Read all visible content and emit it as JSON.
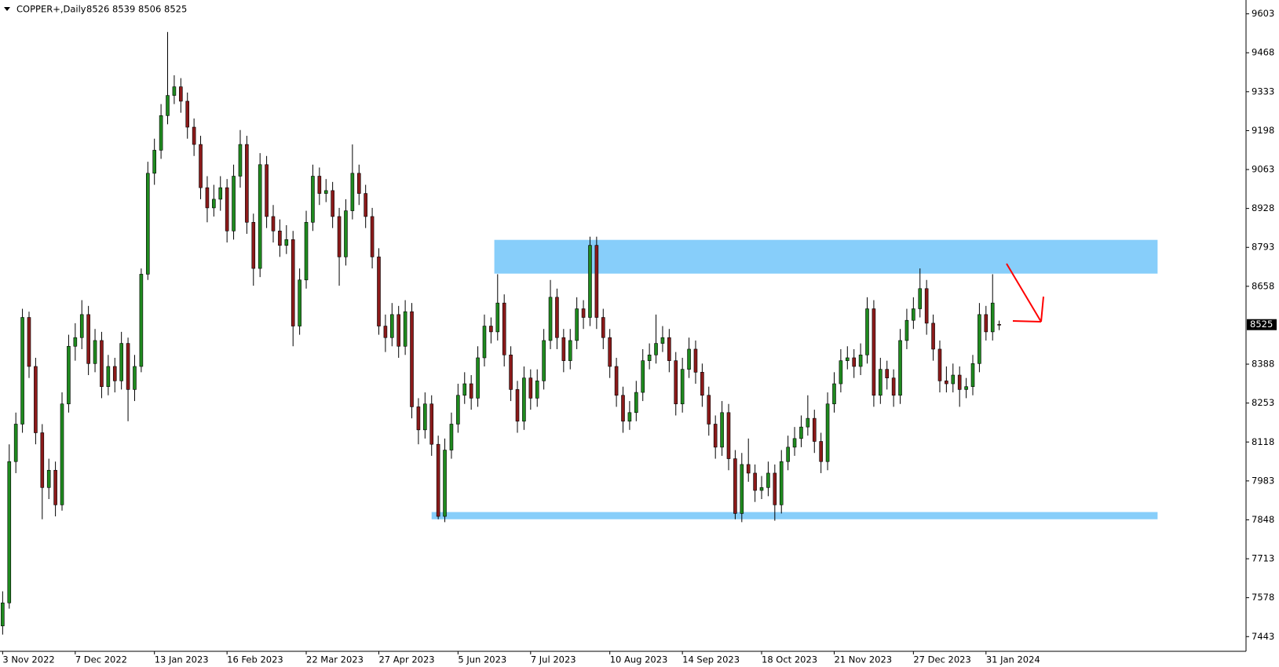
{
  "chart_data": {
    "type": "candlestick",
    "title": "COPPER+,Daily",
    "ylim": [
      7392,
      9651
    ],
    "yticks": [
      9603,
      9468,
      9333,
      9198,
      9063,
      8928,
      8793,
      8658,
      8388,
      8253,
      8118,
      7983,
      7848,
      7713,
      7578,
      7443
    ],
    "xlim": [
      -0.4,
      188.4
    ],
    "xticks": [
      {
        "value": 0,
        "label": "3 Nov 2022"
      },
      {
        "value": 11,
        "label": "7 Dec 2022"
      },
      {
        "value": 23,
        "label": "13 Jan 2023"
      },
      {
        "value": 34,
        "label": "16 Feb 2023"
      },
      {
        "value": 46,
        "label": "22 Mar 2023"
      },
      {
        "value": 57,
        "label": "27 Apr 2023"
      },
      {
        "value": 69,
        "label": "5 Jun 2023"
      },
      {
        "value": 80,
        "label": "7 Jul 2023"
      },
      {
        "value": 92,
        "label": "10 Aug 2023"
      },
      {
        "value": 103,
        "label": "14 Sep 2023"
      },
      {
        "value": 115,
        "label": "18 Oct 2023"
      },
      {
        "value": 126,
        "label": "21 Nov 2023"
      },
      {
        "value": 138,
        "label": "27 Dec 2023"
      },
      {
        "value": 149,
        "label": "31 Jan 2024"
      }
    ],
    "up_color": "#1f8a1f",
    "down_color": "#8b1a1a",
    "wick_color": "#000000",
    "grid": false,
    "zones": [
      {
        "x": [
          74.5,
          175
        ],
        "y": [
          8702,
          8819
        ],
        "color": "#87cefa"
      },
      {
        "x": [
          65,
          175
        ],
        "y": [
          7850,
          7875
        ],
        "color": "#87cefa"
      }
    ],
    "ohlc": [
      [
        7480,
        7600,
        7450,
        7560
      ],
      [
        7560,
        8110,
        7540,
        8050
      ],
      [
        8050,
        8220,
        8010,
        8180
      ],
      [
        8180,
        8580,
        8150,
        8550
      ],
      [
        8550,
        8570,
        8340,
        8380
      ],
      [
        8380,
        8410,
        8110,
        8150
      ],
      [
        8150,
        8180,
        7850,
        7960
      ],
      [
        7960,
        8060,
        7920,
        8020
      ],
      [
        8020,
        8050,
        7860,
        7900
      ],
      [
        7900,
        8290,
        7880,
        8250
      ],
      [
        8250,
        8490,
        8220,
        8450
      ],
      [
        8450,
        8530,
        8400,
        8480
      ],
      [
        8480,
        8610,
        8440,
        8560
      ],
      [
        8560,
        8590,
        8350,
        8390
      ],
      [
        8390,
        8510,
        8360,
        8470
      ],
      [
        8470,
        8500,
        8270,
        8310
      ],
      [
        8310,
        8420,
        8280,
        8380
      ],
      [
        8380,
        8410,
        8290,
        8330
      ],
      [
        8330,
        8500,
        8300,
        8460
      ],
      [
        8460,
        8480,
        8190,
        8300
      ],
      [
        8300,
        8420,
        8260,
        8380
      ],
      [
        8380,
        8720,
        8360,
        8700
      ],
      [
        8700,
        9090,
        8680,
        9050
      ],
      [
        9050,
        9170,
        9010,
        9130
      ],
      [
        9130,
        9290,
        9100,
        9250
      ],
      [
        9250,
        9540,
        9220,
        9320
      ],
      [
        9320,
        9390,
        9290,
        9350
      ],
      [
        9350,
        9380,
        9260,
        9300
      ],
      [
        9300,
        9330,
        9170,
        9210
      ],
      [
        9210,
        9240,
        9110,
        9150
      ],
      [
        9150,
        9180,
        8960,
        9000
      ],
      [
        9000,
        9040,
        8880,
        8930
      ],
      [
        8930,
        9010,
        8900,
        8960
      ],
      [
        8960,
        9040,
        8920,
        9000
      ],
      [
        9000,
        9030,
        8810,
        8850
      ],
      [
        8850,
        9080,
        8820,
        9040
      ],
      [
        9040,
        9200,
        9000,
        9150
      ],
      [
        9150,
        9180,
        8840,
        8880
      ],
      [
        8880,
        8910,
        8660,
        8720
      ],
      [
        8720,
        9120,
        8690,
        9080
      ],
      [
        9080,
        9110,
        8860,
        8900
      ],
      [
        8900,
        8940,
        8810,
        8850
      ],
      [
        8850,
        8890,
        8760,
        8800
      ],
      [
        8800,
        8870,
        8770,
        8820
      ],
      [
        8820,
        8850,
        8450,
        8520
      ],
      [
        8520,
        8720,
        8490,
        8680
      ],
      [
        8680,
        8920,
        8650,
        8880
      ],
      [
        8880,
        9080,
        8850,
        9040
      ],
      [
        9040,
        9070,
        8940,
        8980
      ],
      [
        8980,
        9030,
        8950,
        8990
      ],
      [
        8990,
        9020,
        8860,
        8900
      ],
      [
        8900,
        8930,
        8660,
        8760
      ],
      [
        8760,
        8960,
        8730,
        8920
      ],
      [
        8920,
        9150,
        8890,
        9050
      ],
      [
        9050,
        9080,
        8940,
        8980
      ],
      [
        8980,
        9010,
        8860,
        8900
      ],
      [
        8900,
        8930,
        8720,
        8760
      ],
      [
        8760,
        8790,
        8490,
        8520
      ],
      [
        8520,
        8560,
        8430,
        8480
      ],
      [
        8480,
        8600,
        8450,
        8560
      ],
      [
        8560,
        8590,
        8410,
        8450
      ],
      [
        8450,
        8610,
        8420,
        8570
      ],
      [
        8570,
        8600,
        8200,
        8240
      ],
      [
        8240,
        8270,
        8110,
        8160
      ],
      [
        8160,
        8290,
        8130,
        8250
      ],
      [
        8250,
        8280,
        8070,
        8110
      ],
      [
        8110,
        8140,
        7850,
        7860
      ],
      [
        7860,
        8130,
        7840,
        8090
      ],
      [
        8090,
        8220,
        8060,
        8180
      ],
      [
        8180,
        8320,
        8150,
        8280
      ],
      [
        8280,
        8360,
        8250,
        8320
      ],
      [
        8320,
        8350,
        8230,
        8270
      ],
      [
        8270,
        8450,
        8240,
        8410
      ],
      [
        8410,
        8560,
        8380,
        8520
      ],
      [
        8520,
        8550,
        8460,
        8500
      ],
      [
        8500,
        8700,
        8470,
        8600
      ],
      [
        8600,
        8630,
        8380,
        8420
      ],
      [
        8420,
        8450,
        8260,
        8300
      ],
      [
        8300,
        8330,
        8150,
        8190
      ],
      [
        8190,
        8380,
        8160,
        8340
      ],
      [
        8340,
        8370,
        8230,
        8270
      ],
      [
        8270,
        8370,
        8240,
        8330
      ],
      [
        8330,
        8510,
        8300,
        8470
      ],
      [
        8470,
        8680,
        8440,
        8620
      ],
      [
        8620,
        8650,
        8440,
        8480
      ],
      [
        8480,
        8510,
        8360,
        8400
      ],
      [
        8400,
        8510,
        8370,
        8470
      ],
      [
        8470,
        8620,
        8440,
        8580
      ],
      [
        8580,
        8610,
        8510,
        8550
      ],
      [
        8550,
        8830,
        8520,
        8800
      ],
      [
        8800,
        8830,
        8510,
        8550
      ],
      [
        8550,
        8580,
        8440,
        8480
      ],
      [
        8480,
        8510,
        8340,
        8380
      ],
      [
        8380,
        8410,
        8240,
        8280
      ],
      [
        8280,
        8310,
        8150,
        8190
      ],
      [
        8190,
        8260,
        8160,
        8220
      ],
      [
        8220,
        8330,
        8190,
        8290
      ],
      [
        8290,
        8440,
        8260,
        8400
      ],
      [
        8400,
        8460,
        8370,
        8420
      ],
      [
        8420,
        8560,
        8390,
        8460
      ],
      [
        8460,
        8520,
        8430,
        8480
      ],
      [
        8480,
        8510,
        8360,
        8400
      ],
      [
        8400,
        8430,
        8210,
        8250
      ],
      [
        8250,
        8410,
        8220,
        8370
      ],
      [
        8370,
        8480,
        8340,
        8440
      ],
      [
        8440,
        8470,
        8320,
        8360
      ],
      [
        8360,
        8390,
        8240,
        8280
      ],
      [
        8280,
        8310,
        8140,
        8180
      ],
      [
        8180,
        8210,
        8060,
        8100
      ],
      [
        8100,
        8260,
        8070,
        8220
      ],
      [
        8220,
        8250,
        8020,
        8060
      ],
      [
        8060,
        8090,
        7850,
        7870
      ],
      [
        7870,
        8080,
        7840,
        8040
      ],
      [
        8040,
        8130,
        7980,
        8010
      ],
      [
        8010,
        8040,
        7910,
        7950
      ],
      [
        7950,
        8000,
        7920,
        7960
      ],
      [
        7960,
        8050,
        7930,
        8010
      ],
      [
        8010,
        8040,
        7845,
        7900
      ],
      [
        7900,
        8090,
        7870,
        8050
      ],
      [
        8050,
        8140,
        8020,
        8100
      ],
      [
        8100,
        8170,
        8070,
        8130
      ],
      [
        8130,
        8210,
        8100,
        8170
      ],
      [
        8170,
        8280,
        8140,
        8200
      ],
      [
        8200,
        8230,
        8080,
        8120
      ],
      [
        8120,
        8150,
        8010,
        8050
      ],
      [
        8050,
        8290,
        8020,
        8250
      ],
      [
        8250,
        8360,
        8220,
        8320
      ],
      [
        8320,
        8440,
        8290,
        8400
      ],
      [
        8400,
        8450,
        8370,
        8410
      ],
      [
        8410,
        8440,
        8340,
        8380
      ],
      [
        8380,
        8460,
        8350,
        8420
      ],
      [
        8420,
        8620,
        8390,
        8580
      ],
      [
        8580,
        8610,
        8240,
        8280
      ],
      [
        8280,
        8410,
        8250,
        8370
      ],
      [
        8370,
        8400,
        8300,
        8340
      ],
      [
        8340,
        8370,
        8240,
        8280
      ],
      [
        8280,
        8510,
        8250,
        8470
      ],
      [
        8470,
        8580,
        8440,
        8540
      ],
      [
        8540,
        8620,
        8510,
        8580
      ],
      [
        8580,
        8720,
        8550,
        8650
      ],
      [
        8650,
        8680,
        8490,
        8530
      ],
      [
        8530,
        8560,
        8400,
        8440
      ],
      [
        8440,
        8470,
        8290,
        8330
      ],
      [
        8330,
        8380,
        8290,
        8320
      ],
      [
        8320,
        8390,
        8290,
        8350
      ],
      [
        8350,
        8380,
        8240,
        8300
      ],
      [
        8300,
        8340,
        8270,
        8310
      ],
      [
        8310,
        8420,
        8280,
        8390
      ],
      [
        8390,
        8600,
        8360,
        8560
      ],
      [
        8560,
        8590,
        8470,
        8500
      ],
      [
        8500,
        8700,
        8470,
        8600
      ],
      [
        8526,
        8539,
        8506,
        8525
      ]
    ]
  }
}
